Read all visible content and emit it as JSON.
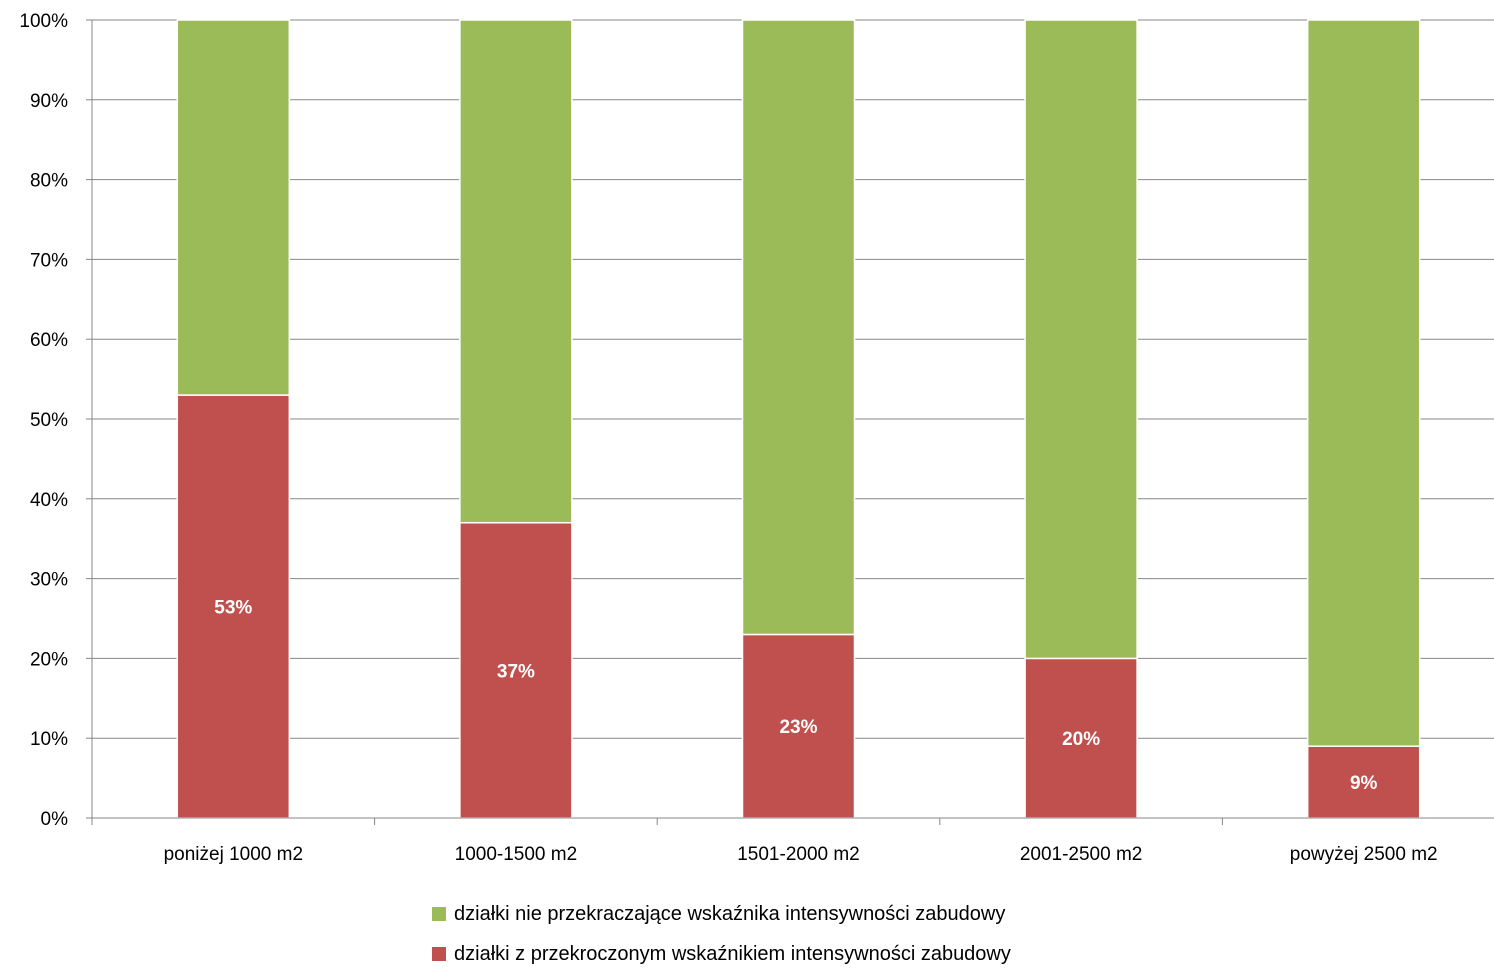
{
  "chart_data": {
    "type": "bar",
    "stacked": true,
    "percent_stacked": true,
    "categories": [
      "poniżej 1000 m2",
      "1000-1500 m2",
      "1501-2000 m2",
      "2001-2500 m2",
      "powyżej 2500 m2"
    ],
    "series": [
      {
        "name": "działki z przekroczonym wskaźnikiem intensywności zabudowy",
        "color": "#C0504D",
        "values": [
          53,
          37,
          23,
          20,
          9
        ],
        "data_labels": [
          "53%",
          "37%",
          "23%",
          "20%",
          "9%"
        ]
      },
      {
        "name": "działki nie przekraczające wskaźnika intensywności zabudowy",
        "color": "#9BBB59",
        "values": [
          47,
          63,
          77,
          80,
          91
        ]
      }
    ],
    "yticks": [
      "0%",
      "10%",
      "20%",
      "30%",
      "40%",
      "50%",
      "60%",
      "70%",
      "80%",
      "90%",
      "100%"
    ],
    "ylim": [
      0,
      100
    ],
    "grid": true,
    "legend_position": "bottom",
    "legend_order": [
      1,
      0
    ]
  }
}
